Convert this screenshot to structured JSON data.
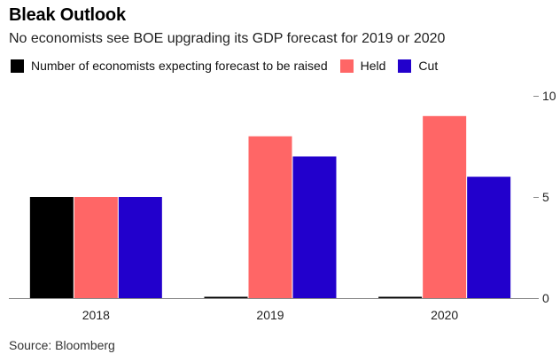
{
  "header": {
    "title": "Bleak Outlook",
    "subtitle": "No economists see BOE upgrading its GDP forecast for 2019 or 2020"
  },
  "footer": {
    "source": "Source: Bloomberg"
  },
  "chart_data": {
    "type": "bar",
    "title": "Bleak Outlook",
    "subtitle": "No economists see BOE upgrading its GDP forecast for 2019 or 2020",
    "categories": [
      "2018",
      "2019",
      "2020"
    ],
    "series": [
      {
        "name": "Number of economists expecting forecast to be raised",
        "color": "#000000",
        "values": [
          5,
          0,
          0
        ]
      },
      {
        "name": "Held",
        "color": "#ff6666",
        "values": [
          5,
          8,
          9
        ]
      },
      {
        "name": "Cut",
        "color": "#2200cc",
        "values": [
          5,
          7,
          6
        ]
      }
    ],
    "y_ticks": [
      "0",
      "5",
      "10"
    ],
    "ylim": [
      0,
      10
    ],
    "y_axis_side": "right",
    "grid": false,
    "legend_position": "top-left"
  }
}
